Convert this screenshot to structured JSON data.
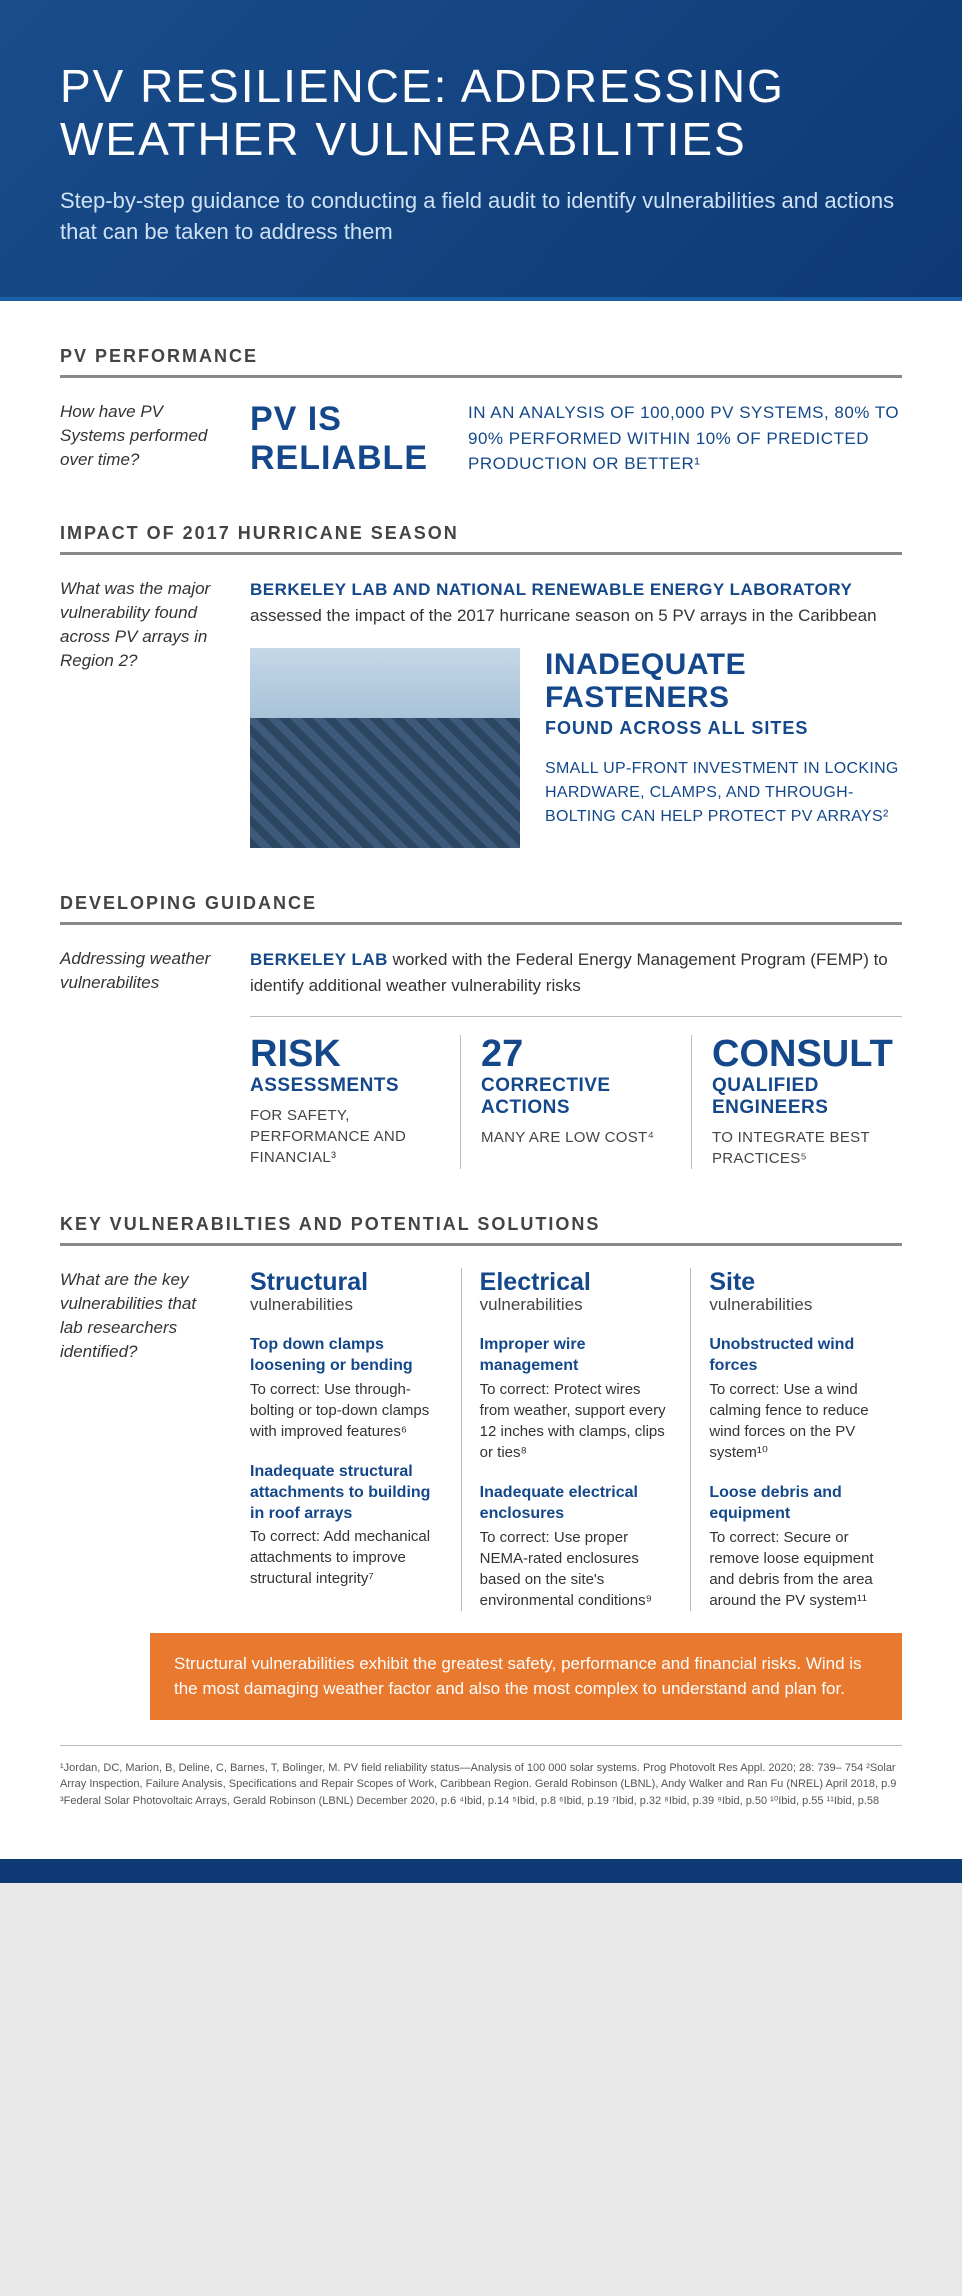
{
  "header": {
    "title": "PV RESILIENCE: ADDRESSING WEATHER VULNERABILITIES",
    "subtitle": "Step-by-step guidance to conducting a field audit to identify vulnerabilities and actions that can be taken to address them"
  },
  "performance": {
    "section_title": "PV PERFORMANCE",
    "question": "How have PV Systems performed over time?",
    "headline": "PV IS RELIABLE",
    "stat": "IN AN ANALYSIS OF 100,000 PV SYSTEMS, 80% TO 90% PERFORMED WITHIN 10% OF PREDICTED PRODUCTION OR BETTER¹"
  },
  "impact": {
    "section_title": "IMPACT OF 2017 HURRICANE SEASON",
    "question": "What was the major vulnerability found across PV arrays in Region 2?",
    "intro_bold": "BERKELEY LAB AND NATIONAL RENEWABLE ENERGY LABORATORY",
    "intro_text": "assessed the impact of the 2017 hurricane season on 5 PV arrays in the Caribbean",
    "finding_title": "INADEQUATE FASTENERS",
    "finding_sub": "FOUND ACROSS ALL SITES",
    "finding_body": "SMALL UP-FRONT INVESTMENT IN LOCKING HARDWARE, CLAMPS, AND THROUGH-BOLTING CAN HELP PROTECT PV ARRAYS²"
  },
  "guidance": {
    "section_title": "DEVELOPING GUIDANCE",
    "question": "Addressing weather vulnerabilites",
    "intro_bold": "BERKELEY LAB",
    "intro_text": " worked with the Federal Energy Management Program (FEMP) to identify additional weather vulnerability risks",
    "cols": [
      {
        "big": "RISK",
        "med": "ASSESSMENTS",
        "small": "FOR SAFETY, PERFORMANCE AND FINANCIAL³"
      },
      {
        "big": "27",
        "med": "CORRECTIVE ACTIONS",
        "small": "MANY ARE LOW COST⁴"
      },
      {
        "big": "CONSULT",
        "med": "QUALIFIED ENGINEERS",
        "small": "TO INTEGRATE BEST PRACTICES⁵"
      }
    ]
  },
  "vulns": {
    "section_title": "KEY VULNERABILTIES AND POTENTIAL SOLUTIONS",
    "question": "What are the key vulnerabilities that lab researchers identified?",
    "categories": [
      {
        "title": "Structural",
        "sub": "vulnerabilities",
        "items": [
          {
            "t": "Top down clamps loosening or bending",
            "b": "To correct: Use through-bolting or top-down clamps with improved features⁶"
          },
          {
            "t": "Inadequate structural attachments to building in roof arrays",
            "b": "To correct: Add mechanical attachments to improve structural integrity⁷"
          }
        ]
      },
      {
        "title": "Electrical",
        "sub": "vulnerabilities",
        "items": [
          {
            "t": "Improper wire management",
            "b": "To correct: Protect wires from weather, support every 12 inches with clamps, clips or ties⁸"
          },
          {
            "t": "Inadequate electrical enclosures",
            "b": "To correct: Use proper NEMA-rated enclosures based on the site's environmental conditions⁹"
          }
        ]
      },
      {
        "title": "Site",
        "sub": "vulnerabilities",
        "items": [
          {
            "t": "Unobstructed wind forces",
            "b": "To correct: Use a wind calming fence to reduce wind forces on the PV system¹⁰"
          },
          {
            "t": "Loose debris and equipment",
            "b": "To correct: Secure or remove loose equipment and debris from the area around the PV system¹¹"
          }
        ]
      }
    ],
    "callout": "Structural vulnerabilities exhibit the greatest safety, performance and financial risks. Wind is the most damaging weather factor and also the most complex to understand and plan for."
  },
  "footnotes": "¹Jordan, DC, Marion, B, Deline, C, Barnes, T, Bolinger, M. PV field reliability status—Analysis of 100 000 solar systems. Prog Photovolt Res Appl. 2020; 28: 739– 754   ²Solar Array Inspection, Failure Analysis, Specifications and Repair Scopes of Work, Caribbean Region. Gerald Robinson (LBNL), Andy Walker and Ran Fu (NREL)  April 2018, p.9   ³Federal Solar Photovoltaic Arrays, Gerald Robinson (LBNL) December 2020, p.6   ⁴Ibid, p.14   ⁵Ibid, p.8   ⁶Ibid, p.19   ⁷Ibid, p.32   ⁸Ibid, p.39   ⁹Ibid, p.50   ¹⁰Ibid, p.55   ¹¹Ibid, p.58",
  "colors": {
    "header_bg_start": "#1a4c8b",
    "header_bg_end": "#0d3a75",
    "accent_blue": "#14488a",
    "callout_orange": "#e8792e",
    "rule_gray": "#888"
  }
}
